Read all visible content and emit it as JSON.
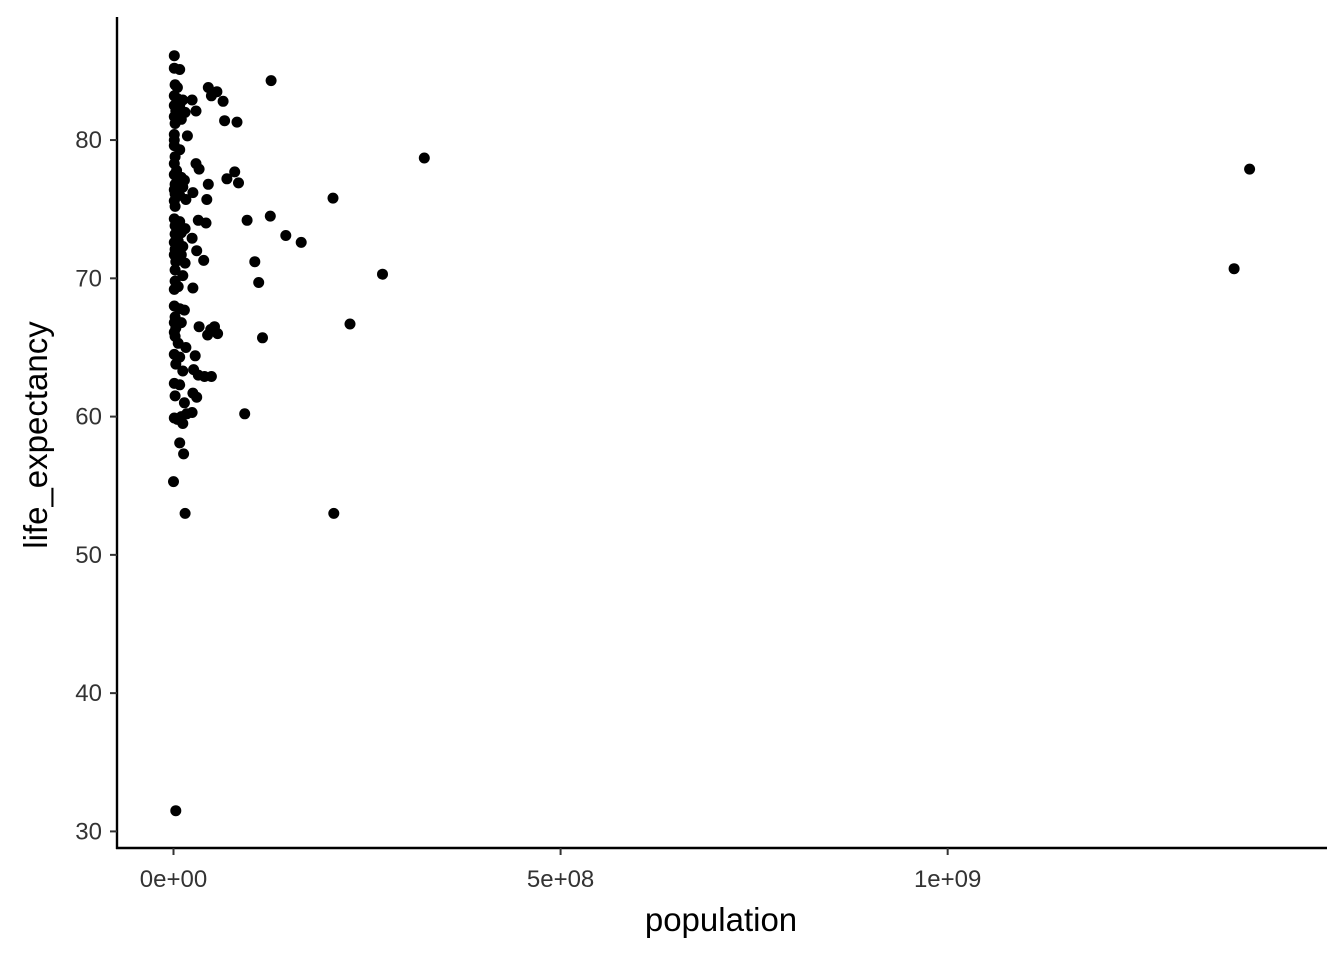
{
  "chart_data": {
    "type": "scatter",
    "xlabel": "population",
    "ylabel": "life_expectancy",
    "xlim": [
      -73000000,
      1490000000
    ],
    "ylim": [
      28.8,
      88.9
    ],
    "x_ticks": [
      {
        "value": 0,
        "label": "0e+00"
      },
      {
        "value": 500000000,
        "label": "5e+08"
      },
      {
        "value": 1000000000,
        "label": "1e+09"
      }
    ],
    "y_ticks": [
      {
        "value": 30,
        "label": "30"
      },
      {
        "value": 40,
        "label": "40"
      },
      {
        "value": 50,
        "label": "50"
      },
      {
        "value": 60,
        "label": "60"
      },
      {
        "value": 70,
        "label": "70"
      },
      {
        "value": 80,
        "label": "80"
      }
    ],
    "grid": false,
    "legend": "none",
    "point_color": "#000000",
    "points": [
      [
        1000000,
        86.1
      ],
      [
        1000000,
        85.2
      ],
      [
        8000000,
        85.1
      ],
      [
        2000000,
        84.0
      ],
      [
        5000000,
        83.8
      ],
      [
        1000000,
        83.2
      ],
      [
        5000000,
        83.0
      ],
      [
        12000000,
        82.9
      ],
      [
        1000000,
        82.5
      ],
      [
        8000000,
        82.5
      ],
      [
        3000000,
        82.1
      ],
      [
        10000000,
        81.9
      ],
      [
        15000000,
        82.0
      ],
      [
        1000000,
        81.7
      ],
      [
        10000000,
        81.5
      ],
      [
        2000000,
        81.2
      ],
      [
        1000000,
        80.4
      ],
      [
        18000000,
        80.3
      ],
      [
        1000000,
        80.0
      ],
      [
        1000000,
        79.6
      ],
      [
        8000000,
        79.3
      ],
      [
        2000000,
        78.8
      ],
      [
        1000000,
        78.3
      ],
      [
        4000000,
        77.8
      ],
      [
        1000000,
        77.5
      ],
      [
        10000000,
        77.3
      ],
      [
        14000000,
        77.1
      ],
      [
        2000000,
        76.8
      ],
      [
        8000000,
        76.8
      ],
      [
        1000000,
        76.4
      ],
      [
        12000000,
        76.6
      ],
      [
        2000000,
        76.1
      ],
      [
        8000000,
        76.0
      ],
      [
        1000000,
        75.6
      ],
      [
        16000000,
        75.7
      ],
      [
        2000000,
        75.2
      ],
      [
        1000000,
        74.3
      ],
      [
        8000000,
        74.1
      ],
      [
        2000000,
        73.8
      ],
      [
        15000000,
        73.6
      ],
      [
        2000000,
        73.2
      ],
      [
        10000000,
        73.3
      ],
      [
        1000000,
        72.6
      ],
      [
        6000000,
        72.7
      ],
      [
        12000000,
        72.3
      ],
      [
        2000000,
        72.1
      ],
      [
        1000000,
        71.7
      ],
      [
        10000000,
        71.7
      ],
      [
        3000000,
        71.2
      ],
      [
        15000000,
        71.1
      ],
      [
        2000000,
        70.6
      ],
      [
        12000000,
        70.2
      ],
      [
        2000000,
        69.8
      ],
      [
        1000000,
        69.2
      ],
      [
        6000000,
        69.4
      ],
      [
        1000000,
        68.0
      ],
      [
        8000000,
        67.8
      ],
      [
        14000000,
        67.7
      ],
      [
        2000000,
        67.2
      ],
      [
        1000000,
        66.8
      ],
      [
        10000000,
        66.8
      ],
      [
        3000000,
        66.4
      ],
      [
        1000000,
        66.1
      ],
      [
        2000000,
        65.8
      ],
      [
        6000000,
        65.3
      ],
      [
        16000000,
        65.0
      ],
      [
        1000000,
        64.5
      ],
      [
        8000000,
        64.3
      ],
      [
        3000000,
        63.8
      ],
      [
        12000000,
        63.3
      ],
      [
        1000000,
        62.4
      ],
      [
        8000000,
        62.3
      ],
      [
        2000000,
        61.5
      ],
      [
        14000000,
        61.0
      ],
      [
        10000000,
        60.0
      ],
      [
        1000000,
        59.9
      ],
      [
        5000000,
        59.8
      ],
      [
        17000000,
        60.2
      ],
      [
        12000000,
        59.5
      ],
      [
        8000000,
        58.1
      ],
      [
        13000000,
        57.3
      ],
      [
        0,
        55.3
      ],
      [
        15000000,
        53.0
      ],
      [
        3000000,
        31.5
      ],
      [
        24000000,
        82.9
      ],
      [
        29000000,
        82.1
      ],
      [
        45000000,
        83.8
      ],
      [
        49000000,
        83.2
      ],
      [
        56000000,
        83.5
      ],
      [
        64000000,
        82.8
      ],
      [
        66000000,
        81.4
      ],
      [
        82000000,
        81.3
      ],
      [
        126000000,
        84.3
      ],
      [
        29000000,
        78.3
      ],
      [
        33000000,
        77.9
      ],
      [
        69000000,
        77.2
      ],
      [
        79000000,
        77.7
      ],
      [
        84000000,
        76.9
      ],
      [
        45000000,
        76.8
      ],
      [
        25000000,
        76.2
      ],
      [
        43000000,
        75.7
      ],
      [
        95000000,
        74.2
      ],
      [
        125000000,
        74.5
      ],
      [
        32000000,
        74.2
      ],
      [
        42000000,
        74.0
      ],
      [
        145000000,
        73.1
      ],
      [
        165000000,
        72.6
      ],
      [
        24000000,
        72.9
      ],
      [
        30000000,
        72.0
      ],
      [
        39000000,
        71.3
      ],
      [
        105000000,
        71.2
      ],
      [
        110000000,
        69.7
      ],
      [
        25000000,
        69.3
      ],
      [
        33000000,
        66.5
      ],
      [
        48000000,
        66.3
      ],
      [
        44000000,
        65.9
      ],
      [
        57000000,
        66.0
      ],
      [
        53000000,
        66.5
      ],
      [
        115000000,
        65.7
      ],
      [
        28000000,
        64.4
      ],
      [
        26000000,
        63.4
      ],
      [
        32000000,
        63.0
      ],
      [
        40000000,
        62.9
      ],
      [
        49000000,
        62.9
      ],
      [
        25000000,
        61.7
      ],
      [
        30000000,
        61.4
      ],
      [
        24000000,
        60.3
      ],
      [
        92000000,
        60.2
      ],
      [
        206000000,
        75.8
      ],
      [
        324000000,
        78.7
      ],
      [
        270000000,
        70.3
      ],
      [
        228000000,
        66.7
      ],
      [
        207000000,
        53.0
      ],
      [
        1390000000,
        77.9
      ],
      [
        1370000000,
        70.7
      ]
    ]
  }
}
